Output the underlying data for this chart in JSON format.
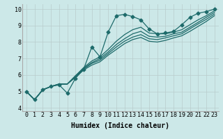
{
  "xlabel": "Humidex (Indice chaleur)",
  "ylabel": "",
  "xlim": [
    -0.5,
    23.5
  ],
  "ylim": [
    3.8,
    10.3
  ],
  "xticks": [
    0,
    1,
    2,
    3,
    4,
    5,
    6,
    7,
    8,
    9,
    10,
    11,
    12,
    13,
    14,
    15,
    16,
    17,
    18,
    19,
    20,
    21,
    22,
    23
  ],
  "yticks": [
    4,
    5,
    6,
    7,
    8,
    9,
    10
  ],
  "bg_color": "#cce8e8",
  "grid_color": "#b8cccc",
  "line_color": "#1e6b6b",
  "series_main": [
    5.0,
    4.5,
    5.1,
    5.3,
    5.4,
    4.9,
    5.8,
    6.35,
    7.7,
    7.1,
    8.6,
    9.6,
    9.68,
    9.55,
    9.35,
    8.8,
    8.5,
    8.55,
    8.65,
    9.05,
    9.5,
    9.75,
    9.85,
    10.0
  ],
  "series_smooth": [
    [
      5.0,
      4.5,
      5.1,
      5.3,
      5.45,
      5.45,
      5.95,
      6.45,
      6.85,
      7.1,
      7.55,
      8.05,
      8.45,
      8.75,
      8.9,
      8.55,
      8.5,
      8.5,
      8.6,
      8.75,
      9.05,
      9.35,
      9.6,
      9.9
    ],
    [
      5.0,
      4.5,
      5.1,
      5.3,
      5.45,
      5.45,
      5.95,
      6.4,
      6.75,
      7.0,
      7.4,
      7.85,
      8.2,
      8.5,
      8.65,
      8.35,
      8.3,
      8.35,
      8.5,
      8.6,
      8.9,
      9.2,
      9.5,
      9.8
    ],
    [
      5.0,
      4.5,
      5.1,
      5.3,
      5.45,
      5.45,
      5.9,
      6.35,
      6.7,
      6.9,
      7.3,
      7.7,
      8.05,
      8.3,
      8.45,
      8.2,
      8.15,
      8.25,
      8.38,
      8.5,
      8.8,
      9.1,
      9.38,
      9.7
    ],
    [
      5.0,
      4.5,
      5.1,
      5.3,
      5.45,
      5.45,
      5.85,
      6.3,
      6.6,
      6.8,
      7.2,
      7.55,
      7.9,
      8.15,
      8.28,
      8.05,
      8.0,
      8.1,
      8.25,
      8.38,
      8.65,
      8.95,
      9.25,
      9.6
    ]
  ],
  "marker": "D",
  "marker_size": 2.5,
  "linewidth": 0.9,
  "font_size_label": 7,
  "font_size_tick": 6
}
